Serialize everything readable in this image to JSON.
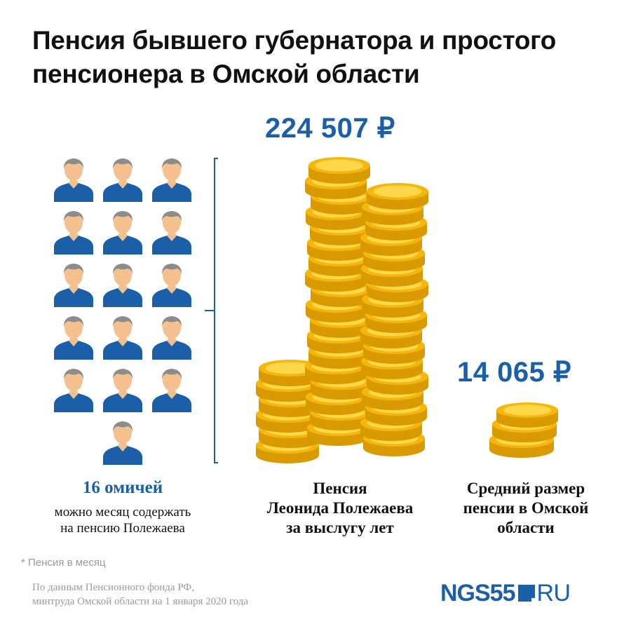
{
  "title": "Пенсия бывшего губернатора и простого пенсионера в Омской области",
  "people": {
    "count": 16,
    "icon": "person-icon",
    "shirt_color": "#1a5fa8",
    "skin_color": "#f4c08e",
    "hair_color": "#8c8c8c"
  },
  "amounts": {
    "governor": "224 507 ₽",
    "average": "14 065 ₽"
  },
  "captions": {
    "count_bold": "16 омичей",
    "count_sub_line1": "можно месяц содержать",
    "count_sub_line2": "на пенсию Полежаева",
    "pension_line1": "Пенсия",
    "pension_line2": "Леонида Полежаева",
    "pension_line3": "за выслугу лет",
    "avg_line1": "Средний размер",
    "avg_line2": "пенсии в Омской",
    "avg_line3": "области"
  },
  "footnote": "* Пенсия в месяц",
  "source": {
    "line1": "По данным Пенсионного фонда РФ,",
    "line2": "минтруда Омской области на 1 января 2020 года"
  },
  "logo": {
    "brand": "NGS55",
    "domain": "RU"
  },
  "colors": {
    "accent": "#1a5fa8",
    "coin": "#f5b70c",
    "coin_dark": "#d99a00",
    "coin_light": "#ffd84a"
  }
}
